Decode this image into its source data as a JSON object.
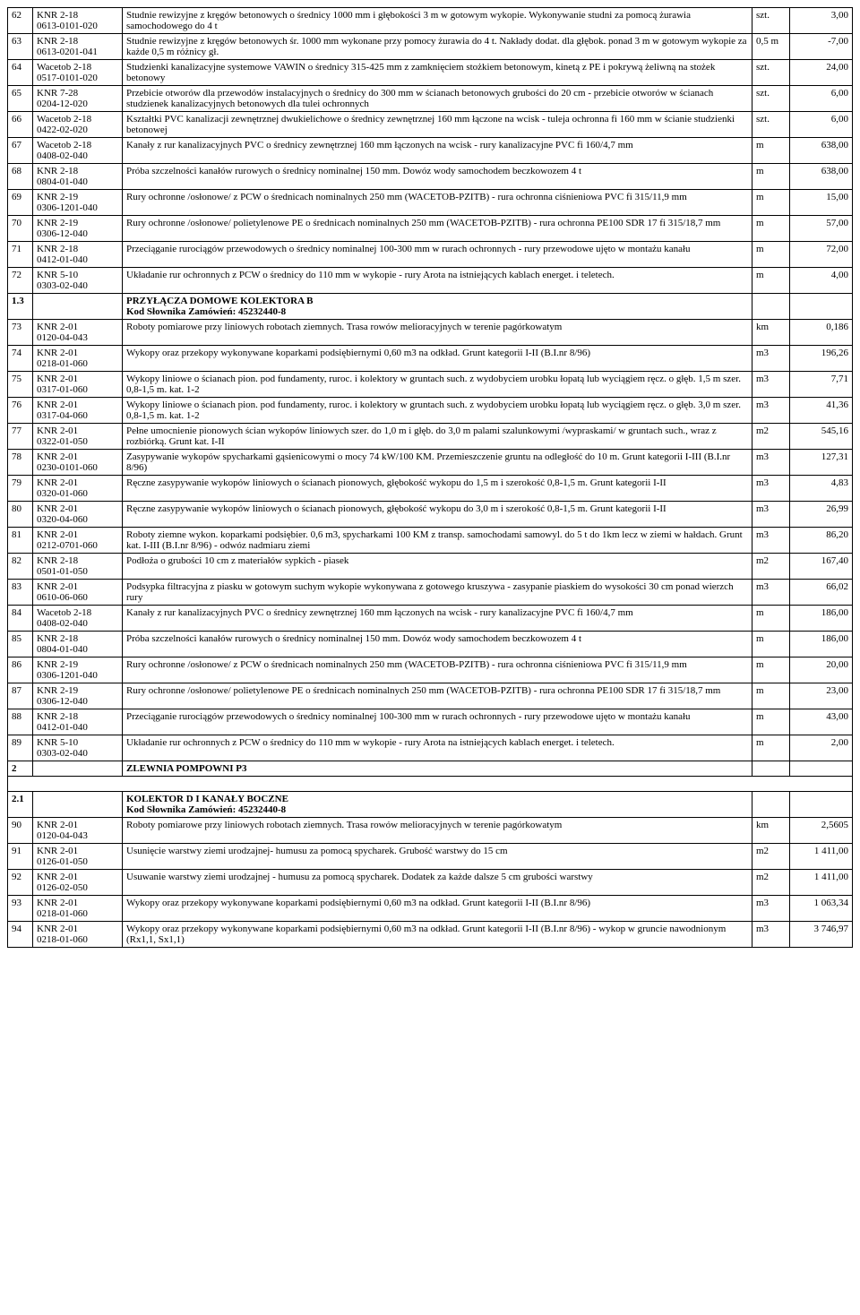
{
  "rows": [
    {
      "no": "62",
      "code": "KNR 2-18\n0613-0101-020",
      "desc": "Studnie rewizyjne z kręgów betonowych o średnicy 1000 mm i głębokości 3 m w gotowym wykopie. Wykonywanie studni za pomocą żurawia samochodowego do 4 t",
      "unit": "szt.",
      "qty": "3,00"
    },
    {
      "no": "63",
      "code": "KNR 2-18\n0613-0201-041",
      "desc": "Studnie rewizyjne z kręgów betonowych śr. 1000 mm wykonane przy pomocy żurawia do 4 t. Nakłady dodat. dla głębok. ponad 3 m w gotowym wykopie za każde 0,5 m różnicy gł.",
      "unit": "0,5 m",
      "qty": "-7,00"
    },
    {
      "no": "64",
      "code": "Wacetob 2-18\n0517-0101-020",
      "desc": "Studzienki kanalizacyjne systemowe VAWIN o średnicy 315-425 mm z zamknięciem stożkiem betonowym, kinetą z PE i pokrywą żeliwną na stożek betonowy",
      "unit": "szt.",
      "qty": "24,00"
    },
    {
      "no": "65",
      "code": "KNR 7-28\n0204-12-020",
      "desc": "Przebicie otworów dla przewodów instalacyjnych o średnicy do 300 mm w ścianach betonowych grubości do 20 cm - przebicie otworów w ścianach studzienek kanalizacyjnych betonowych dla tulei ochronnych",
      "unit": "szt.",
      "qty": "6,00"
    },
    {
      "no": "66",
      "code": "Wacetob 2-18\n0422-02-020",
      "desc": "Kształtki PVC kanalizacji zewnętrznej dwukielichowe o średnicy zewnętrznej 160 mm łączone na wcisk - tuleja ochronna fi 160 mm w ścianie studzienki betonowej",
      "unit": "szt.",
      "qty": "6,00"
    },
    {
      "no": "67",
      "code": "Wacetob 2-18\n0408-02-040",
      "desc": "Kanały z rur kanalizacyjnych PVC o średnicy zewnętrznej 160 mm łączonych na wcisk - rury kanalizacyjne PVC fi 160/4,7 mm",
      "unit": "m",
      "qty": "638,00"
    },
    {
      "no": "68",
      "code": "KNR 2-18\n0804-01-040",
      "desc": "Próba szczelności kanałów rurowych o średnicy nominalnej 150 mm. Dowóz wody samochodem beczkowozem 4 t",
      "unit": "m",
      "qty": "638,00"
    },
    {
      "no": "69",
      "code": "KNR 2-19\n0306-1201-040",
      "desc": "Rury ochronne /osłonowe/ z PCW o średnicach nominalnych 250 mm (WACETOB-PZITB) - rura ochronna ciśnieniowa PVC fi 315/11,9 mm",
      "unit": "m",
      "qty": "15,00"
    },
    {
      "no": "70",
      "code": "KNR 2-19\n0306-12-040",
      "desc": "Rury ochronne /osłonowe/ polietylenowe PE o średnicach nominalnych 250 mm (WACETOB-PZITB) - rura ochronna PE100 SDR 17 fi 315/18,7 mm",
      "unit": "m",
      "qty": "57,00"
    },
    {
      "no": "71",
      "code": "KNR 2-18\n0412-01-040",
      "desc": "Przeciąganie rurociągów przewodowych o średnicy nominalnej 100-300 mm w rurach ochronnych - rury przewodowe ujęto w montażu kanału",
      "unit": "m",
      "qty": "72,00"
    },
    {
      "no": "72",
      "code": "KNR 5-10\n0303-02-040",
      "desc": "Układanie rur ochronnych z PCW o średnicy do 110 mm w wykopie - rury Arota na istniejących kablach energet. i teletech.",
      "unit": "m",
      "qty": "4,00"
    },
    {
      "section": true,
      "no": "1.3",
      "code": "",
      "desc": "PRZYŁĄCZA DOMOWE KOLEKTORA B\nKod Słownika Zamówień: 45232440-8",
      "unit": "",
      "qty": ""
    },
    {
      "no": "73",
      "code": "KNR 2-01\n0120-04-043",
      "desc": "Roboty pomiarowe przy liniowych robotach ziemnych. Trasa rowów melioracyjnych w terenie pagórkowatym",
      "unit": "km",
      "qty": "0,186"
    },
    {
      "no": "74",
      "code": "KNR 2-01\n0218-01-060",
      "desc": "Wykopy oraz przekopy wykonywane koparkami podsiębiernymi 0,60 m3 na odkład. Grunt kategorii I-II (B.I.nr 8/96)",
      "unit": "m3",
      "qty": "196,26"
    },
    {
      "no": "75",
      "code": "KNR 2-01\n0317-01-060",
      "desc": "Wykopy liniowe o ścianach pion. pod fundamenty, ruroc. i kolektory w gruntach such. z wydobyciem urobku łopatą lub wyciągiem ręcz. o głęb. 1,5 m szer. 0,8-1,5 m. kat. 1-2",
      "unit": "m3",
      "qty": "7,71"
    },
    {
      "no": "76",
      "code": "KNR 2-01\n0317-04-060",
      "desc": "Wykopy liniowe o ścianach pion. pod fundamenty, ruroc. i kolektory w gruntach such. z wydobyciem urobku łopatą lub wyciągiem ręcz. o głęb. 3,0 m szer. 0,8-1,5 m. kat. 1-2",
      "unit": "m3",
      "qty": "41,36"
    },
    {
      "no": "77",
      "code": "KNR 2-01\n0322-01-050",
      "desc": "Pełne umocnienie pionowych ścian wykopów liniowych szer. do 1,0 m i głęb. do 3,0 m palami szalunkowymi /wypraskami/ w gruntach such., wraz z rozbiórką. Grunt kat. I-II",
      "unit": "m2",
      "qty": "545,16"
    },
    {
      "no": "78",
      "code": "KNR 2-01\n0230-0101-060",
      "desc": "Zasypywanie wykopów spycharkami gąsienicowymi o mocy 74 kW/100 KM. Przemieszczenie gruntu na odległość do 10 m. Grunt kategorii I-III (B.I.nr 8/96)",
      "unit": "m3",
      "qty": "127,31"
    },
    {
      "no": "79",
      "code": "KNR 2-01\n0320-01-060",
      "desc": "Ręczne zasypywanie wykopów liniowych o ścianach pionowych, głębokość wykopu do 1,5 m i szerokość 0,8-1,5 m. Grunt kategorii I-II",
      "unit": "m3",
      "qty": "4,83"
    },
    {
      "no": "80",
      "code": "KNR 2-01\n0320-04-060",
      "desc": "Ręczne zasypywanie wykopów liniowych o ścianach pionowych, głębokość wykopu do 3,0 m i szerokość 0,8-1,5 m. Grunt kategorii I-II",
      "unit": "m3",
      "qty": "26,99"
    },
    {
      "no": "81",
      "code": "KNR 2-01\n0212-0701-060",
      "desc": "Roboty ziemne wykon. koparkami podsiębier. 0,6 m3, spycharkami 100 KM z transp. samochodami samowyl. do 5 t do 1km lecz w ziemi w hałdach. Grunt kat. I-III (B.I.nr 8/96) - odwóz nadmiaru ziemi",
      "unit": "m3",
      "qty": "86,20"
    },
    {
      "no": "82",
      "code": "KNR 2-18\n0501-01-050",
      "desc": "Podłoża o grubości 10 cm z materiałów sypkich - piasek",
      "unit": "m2",
      "qty": "167,40"
    },
    {
      "no": "83",
      "code": "KNR 2-01\n0610-06-060",
      "desc": "Podsypka filtracyjna z piasku w gotowym suchym wykopie wykonywana z gotowego kruszywa - zasypanie piaskiem do wysokości 30 cm ponad wierzch rury",
      "unit": "m3",
      "qty": "66,02"
    },
    {
      "no": "84",
      "code": "Wacetob 2-18\n0408-02-040",
      "desc": "Kanały z rur kanalizacyjnych PVC o średnicy zewnętrznej 160 mm łączonych na wcisk - rury kanalizacyjne PVC fi 160/4,7 mm",
      "unit": "m",
      "qty": "186,00"
    },
    {
      "no": "85",
      "code": "KNR 2-18\n0804-01-040",
      "desc": "Próba szczelności kanałów rurowych o średnicy nominalnej 150 mm. Dowóz wody samochodem beczkowozem 4 t",
      "unit": "m",
      "qty": "186,00"
    },
    {
      "no": "86",
      "code": "KNR 2-19\n0306-1201-040",
      "desc": "Rury ochronne /osłonowe/ z PCW o średnicach nominalnych 250 mm (WACETOB-PZITB) - rura ochronna ciśnieniowa PVC fi 315/11,9 mm",
      "unit": "m",
      "qty": "20,00"
    },
    {
      "no": "87",
      "code": "KNR 2-19\n0306-12-040",
      "desc": "Rury ochronne /osłonowe/ polietylenowe PE o średnicach nominalnych 250 mm (WACETOB-PZITB) - rura ochronna PE100 SDR 17 fi 315/18,7 mm",
      "unit": "m",
      "qty": "23,00"
    },
    {
      "no": "88",
      "code": "KNR 2-18\n0412-01-040",
      "desc": "Przeciąganie rurociągów przewodowych o średnicy nominalnej 100-300 mm w rurach ochronnych - rury przewodowe ujęto w montażu kanału",
      "unit": "m",
      "qty": "43,00"
    },
    {
      "no": "89",
      "code": "KNR 5-10\n0303-02-040",
      "desc": "Układanie rur ochronnych z PCW o średnicy do 110 mm w wykopie - rury Arota na istniejących kablach energet. i teletech.",
      "unit": "m",
      "qty": "2,00"
    },
    {
      "section": true,
      "no": "2",
      "code": "",
      "desc": "ZLEWNIA POMPOWNI P3",
      "unit": "",
      "qty": ""
    },
    {
      "empty": true
    },
    {
      "section": true,
      "no": "2.1",
      "code": "",
      "desc": "KOLEKTOR D I KANAŁY BOCZNE\nKod Słownika Zamówień: 45232440-8",
      "unit": "",
      "qty": ""
    },
    {
      "no": "90",
      "code": "KNR 2-01\n0120-04-043",
      "desc": "Roboty pomiarowe przy liniowych robotach ziemnych. Trasa rowów melioracyjnych w terenie pagórkowatym",
      "unit": "km",
      "qty": "2,5605"
    },
    {
      "no": "91",
      "code": "KNR 2-01\n0126-01-050",
      "desc": "Usunięcie warstwy ziemi urodzajnej- humusu za pomocą spycharek. Grubość warstwy do 15 cm",
      "unit": "m2",
      "qty": "1 411,00"
    },
    {
      "no": "92",
      "code": "KNR 2-01\n0126-02-050",
      "desc": "Usuwanie warstwy ziemi urodzajnej - humusu za pomocą spycharek. Dodatek za każde dalsze 5 cm grubości warstwy",
      "unit": "m2",
      "qty": "1 411,00"
    },
    {
      "no": "93",
      "code": "KNR 2-01\n0218-01-060",
      "desc": "Wykopy oraz przekopy wykonywane koparkami podsiębiernymi 0,60 m3 na odkład. Grunt kategorii I-II (B.I.nr 8/96)",
      "unit": "m3",
      "qty": "1 063,34"
    },
    {
      "no": "94",
      "code": "KNR 2-01\n0218-01-060",
      "desc": "Wykopy oraz przekopy wykonywane koparkami podsiębiernymi 0,60 m3 na odkład. Grunt kategorii I-II (B.I.nr 8/96) - wykop w gruncie nawodnionym (Rx1,1, Sx1,1)",
      "unit": "m3",
      "qty": "3 746,97"
    }
  ]
}
